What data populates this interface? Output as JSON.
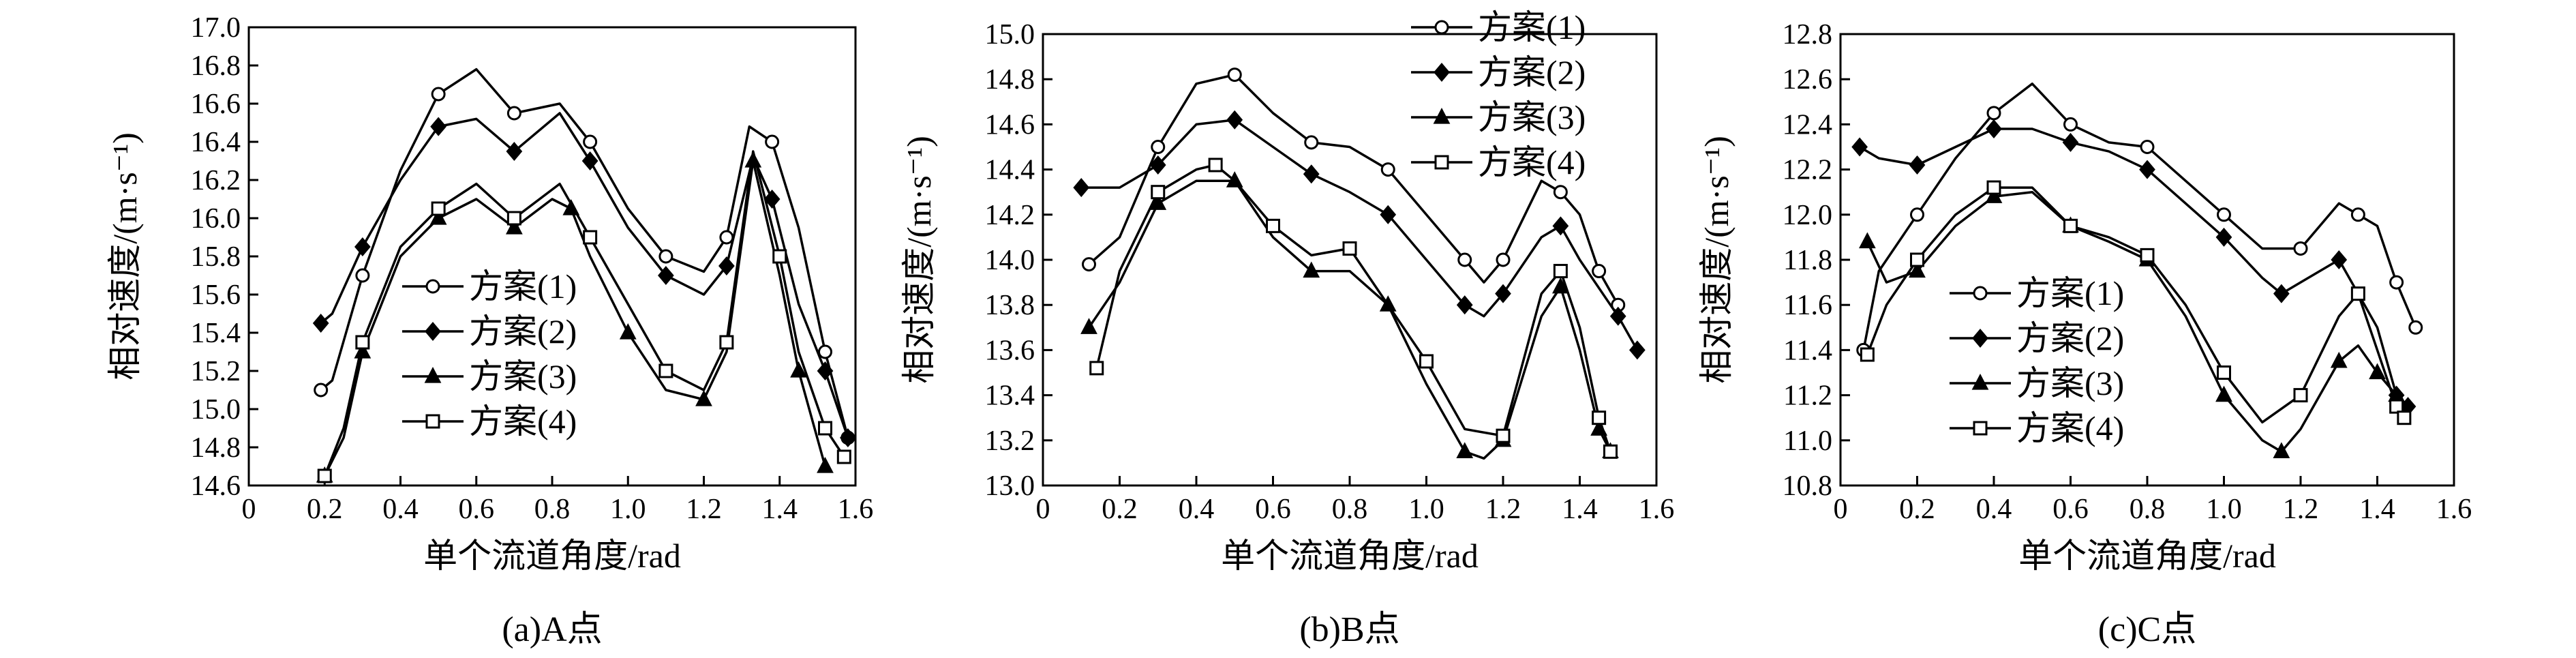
{
  "chart_data": [
    {
      "type": "line",
      "caption": "(a)A点",
      "xlabel": "单个流道角度/rad",
      "ylabel": "相对速度/(m·s⁻¹)",
      "xlim": [
        0,
        1.6
      ],
      "ylim": [
        14.6,
        17.0
      ],
      "xticks": [
        "0",
        "0.2",
        "0.4",
        "0.6",
        "0.8",
        "1.0",
        "1.2",
        "1.4",
        "1.6"
      ],
      "yticks": [
        "14.6",
        "14.8",
        "15.0",
        "15.2",
        "15.4",
        "15.6",
        "15.8",
        "16.0",
        "16.2",
        "16.4",
        "16.6",
        "16.8",
        "17.0"
      ],
      "legend_position": "lower-left",
      "series": [
        {
          "name": "方案(1)",
          "marker": "circle-open",
          "x": [
            0.19,
            0.22,
            0.3,
            0.4,
            0.5,
            0.6,
            0.7,
            0.82,
            0.9,
            1.0,
            1.1,
            1.2,
            1.26,
            1.32,
            1.38,
            1.45,
            1.52,
            1.58
          ],
          "y": [
            15.1,
            15.15,
            15.7,
            16.25,
            16.65,
            16.78,
            16.55,
            16.6,
            16.4,
            16.05,
            15.8,
            15.72,
            15.9,
            16.48,
            16.4,
            15.95,
            15.3,
            14.85
          ]
        },
        {
          "name": "方案(2)",
          "marker": "diamond-filled",
          "x": [
            0.19,
            0.22,
            0.3,
            0.4,
            0.5,
            0.6,
            0.7,
            0.82,
            0.9,
            1.0,
            1.1,
            1.2,
            1.26,
            1.33,
            1.38,
            1.45,
            1.52,
            1.58
          ],
          "y": [
            15.45,
            15.5,
            15.85,
            16.2,
            16.48,
            16.52,
            16.35,
            16.55,
            16.3,
            15.95,
            15.7,
            15.6,
            15.75,
            16.32,
            16.1,
            15.55,
            15.2,
            14.85
          ]
        },
        {
          "name": "方案(3)",
          "marker": "triangle-filled",
          "x": [
            0.2,
            0.25,
            0.3,
            0.4,
            0.5,
            0.6,
            0.7,
            0.8,
            0.85,
            0.9,
            1.0,
            1.1,
            1.2,
            1.26,
            1.33,
            1.4,
            1.45,
            1.52
          ],
          "y": [
            14.65,
            14.85,
            15.3,
            15.8,
            16.0,
            16.1,
            15.95,
            16.1,
            16.05,
            15.8,
            15.4,
            15.1,
            15.05,
            15.3,
            16.3,
            15.7,
            15.2,
            14.7
          ]
        },
        {
          "name": "方案(4)",
          "marker": "square-open",
          "x": [
            0.2,
            0.25,
            0.3,
            0.4,
            0.5,
            0.6,
            0.7,
            0.82,
            0.9,
            1.0,
            1.1,
            1.2,
            1.26,
            1.33,
            1.4,
            1.45,
            1.52,
            1.57
          ],
          "y": [
            14.65,
            14.9,
            15.35,
            15.85,
            16.05,
            16.18,
            16.0,
            16.18,
            15.9,
            15.55,
            15.2,
            15.1,
            15.35,
            16.35,
            15.8,
            15.3,
            14.9,
            14.75
          ]
        }
      ]
    },
    {
      "type": "line",
      "caption": "(b)B点",
      "xlabel": "单个流道角度/rad",
      "ylabel": "相对速度/(m·s⁻¹)",
      "xlim": [
        0,
        1.6
      ],
      "ylim": [
        13.0,
        15.0
      ],
      "xticks": [
        "0",
        "0.2",
        "0.4",
        "0.6",
        "0.8",
        "1.0",
        "1.2",
        "1.4",
        "1.6"
      ],
      "yticks": [
        "13.0",
        "13.2",
        "13.4",
        "13.6",
        "13.8",
        "14.0",
        "14.2",
        "14.4",
        "14.6",
        "14.8",
        "15.0"
      ],
      "legend_position": "top-right",
      "series": [
        {
          "name": "方案(1)",
          "marker": "circle-open",
          "x": [
            0.12,
            0.2,
            0.3,
            0.4,
            0.5,
            0.6,
            0.7,
            0.8,
            0.9,
            1.0,
            1.1,
            1.15,
            1.2,
            1.3,
            1.35,
            1.4,
            1.45,
            1.5
          ],
          "y": [
            13.98,
            14.1,
            14.5,
            14.78,
            14.82,
            14.65,
            14.52,
            14.5,
            14.4,
            14.2,
            14.0,
            13.9,
            14.0,
            14.35,
            14.3,
            14.2,
            13.95,
            13.8
          ]
        },
        {
          "name": "方案(2)",
          "marker": "diamond-filled",
          "x": [
            0.1,
            0.2,
            0.3,
            0.4,
            0.5,
            0.6,
            0.7,
            0.8,
            0.9,
            1.0,
            1.1,
            1.15,
            1.2,
            1.3,
            1.35,
            1.4,
            1.5,
            1.55
          ],
          "y": [
            14.32,
            14.32,
            14.42,
            14.6,
            14.62,
            14.5,
            14.38,
            14.3,
            14.2,
            14.0,
            13.8,
            13.75,
            13.85,
            14.1,
            14.15,
            14.0,
            13.75,
            13.6
          ]
        },
        {
          "name": "方案(3)",
          "marker": "triangle-filled",
          "x": [
            0.12,
            0.2,
            0.3,
            0.4,
            0.5,
            0.6,
            0.7,
            0.8,
            0.9,
            1.0,
            1.1,
            1.15,
            1.2,
            1.3,
            1.35,
            1.4,
            1.45,
            1.48
          ],
          "y": [
            13.7,
            13.9,
            14.25,
            14.35,
            14.35,
            14.1,
            13.95,
            13.95,
            13.8,
            13.45,
            13.15,
            13.12,
            13.2,
            13.75,
            13.88,
            13.6,
            13.25,
            13.15
          ]
        },
        {
          "name": "方案(4)",
          "marker": "square-open",
          "x": [
            0.14,
            0.2,
            0.3,
            0.4,
            0.45,
            0.5,
            0.6,
            0.7,
            0.8,
            0.9,
            1.0,
            1.1,
            1.2,
            1.3,
            1.35,
            1.4,
            1.45,
            1.48
          ],
          "y": [
            13.52,
            13.95,
            14.3,
            14.4,
            14.42,
            14.35,
            14.15,
            14.02,
            14.05,
            13.8,
            13.55,
            13.25,
            13.22,
            13.85,
            13.95,
            13.7,
            13.3,
            13.15
          ]
        }
      ]
    },
    {
      "type": "line",
      "caption": "(c)C点",
      "xlabel": "单个流道角度/rad",
      "ylabel": "相对速度/(m·s⁻¹)",
      "xlim": [
        0,
        1.6
      ],
      "ylim": [
        10.8,
        12.8
      ],
      "xticks": [
        "0",
        "0.2",
        "0.4",
        "0.6",
        "0.8",
        "1.0",
        "1.2",
        "1.4",
        "1.6"
      ],
      "yticks": [
        "10.8",
        "11.0",
        "11.2",
        "11.4",
        "11.6",
        "11.8",
        "12.0",
        "12.2",
        "12.4",
        "12.6",
        "12.8"
      ],
      "legend_position": "lower-left",
      "series": [
        {
          "name": "方案(1)",
          "marker": "circle-open",
          "x": [
            0.06,
            0.1,
            0.2,
            0.3,
            0.4,
            0.5,
            0.6,
            0.7,
            0.8,
            0.9,
            1.0,
            1.1,
            1.2,
            1.3,
            1.35,
            1.4,
            1.45,
            1.5
          ],
          "y": [
            11.4,
            11.75,
            12.0,
            12.25,
            12.45,
            12.58,
            12.4,
            12.32,
            12.3,
            12.15,
            12.0,
            11.85,
            11.85,
            12.05,
            12.0,
            11.95,
            11.7,
            11.5
          ]
        },
        {
          "name": "方案(2)",
          "marker": "diamond-filled",
          "x": [
            0.05,
            0.1,
            0.2,
            0.3,
            0.4,
            0.5,
            0.6,
            0.7,
            0.8,
            0.9,
            1.0,
            1.1,
            1.15,
            1.2,
            1.3,
            1.4,
            1.45,
            1.48
          ],
          "y": [
            12.3,
            12.25,
            12.22,
            12.3,
            12.38,
            12.38,
            12.32,
            12.28,
            12.2,
            12.05,
            11.9,
            11.72,
            11.65,
            11.7,
            11.8,
            11.5,
            11.2,
            11.15
          ]
        },
        {
          "name": "方案(3)",
          "marker": "triangle-filled",
          "x": [
            0.07,
            0.12,
            0.2,
            0.3,
            0.4,
            0.5,
            0.6,
            0.7,
            0.8,
            0.9,
            1.0,
            1.1,
            1.15,
            1.2,
            1.3,
            1.35,
            1.4,
            1.45
          ],
          "y": [
            11.88,
            11.7,
            11.75,
            11.95,
            12.08,
            12.1,
            11.95,
            11.88,
            11.8,
            11.55,
            11.2,
            11.0,
            10.95,
            11.05,
            11.35,
            11.42,
            11.3,
            11.2
          ]
        },
        {
          "name": "方案(4)",
          "marker": "square-open",
          "x": [
            0.07,
            0.12,
            0.2,
            0.3,
            0.4,
            0.5,
            0.6,
            0.7,
            0.8,
            0.9,
            1.0,
            1.1,
            1.2,
            1.3,
            1.35,
            1.4,
            1.45,
            1.47
          ],
          "y": [
            11.38,
            11.6,
            11.8,
            12.0,
            12.12,
            12.12,
            11.95,
            11.9,
            11.82,
            11.6,
            11.3,
            11.08,
            11.2,
            11.55,
            11.65,
            11.4,
            11.15,
            11.1
          ]
        }
      ]
    }
  ]
}
